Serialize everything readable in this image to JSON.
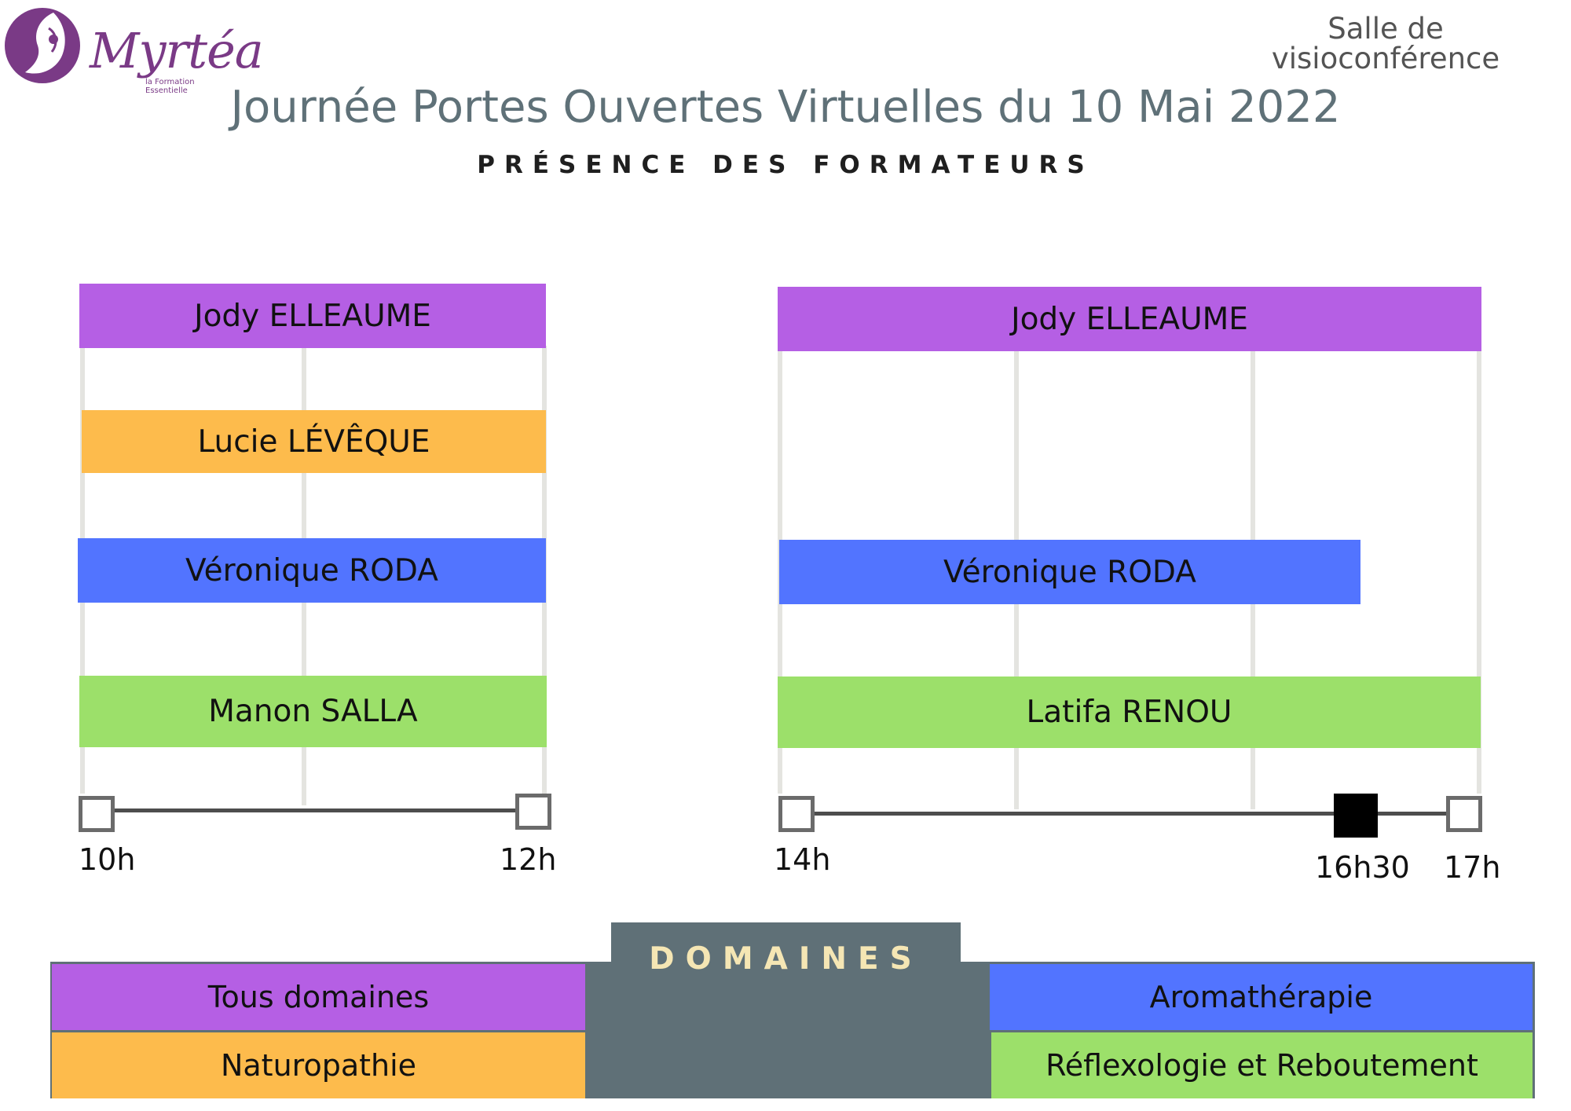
{
  "logo": {
    "name": "Myrtéa",
    "tagline": "la Formation Essentielle"
  },
  "room": {
    "line1": "Salle de",
    "line2": "visioconférence"
  },
  "title": "Journée Portes Ouvertes Virtuelles du 10 Mai 2022",
  "subtitle": "PRÉSENCE DES FORMATEURS",
  "colors": {
    "tous": "#b55fe4",
    "naturo": "#fdbb4c",
    "aroma": "#5274ff",
    "reflexo": "#9ce06a",
    "grid": "#e4e4e0",
    "legend_bg": "#5f7077"
  },
  "morning": {
    "bars": [
      "Jody ELLEAUME",
      "Lucie LÉVÊQUE",
      "Véronique RODA",
      "Manon SALLA"
    ],
    "times": [
      "10h",
      "12h"
    ]
  },
  "afternoon": {
    "bars": [
      "Jody ELLEAUME",
      "Véronique RODA",
      "Latifa RENOU"
    ],
    "times": [
      "14h",
      "16h30",
      "17h"
    ]
  },
  "legend": {
    "heading": "DOMAINES",
    "items": [
      "Tous domaines",
      "Naturopathie",
      "Aromathérapie",
      "Réflexologie et Reboutement"
    ]
  }
}
